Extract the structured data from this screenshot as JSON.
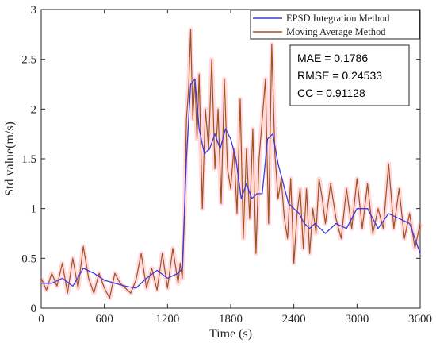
{
  "chart_data": {
    "type": "line",
    "title": "",
    "xlabel": "Time (s)",
    "ylabel": "Std value(m/s)",
    "xlim": [
      0,
      3600
    ],
    "ylim": [
      0,
      3
    ],
    "xticks": [
      0,
      600,
      1200,
      1800,
      2400,
      3000,
      3600
    ],
    "yticks": [
      0,
      0.5,
      1,
      1.5,
      2,
      2.5,
      3
    ],
    "xtick_labels": [
      "0",
      "600",
      "1200",
      "1800",
      "2400",
      "3000",
      "3600"
    ],
    "ytick_labels": [
      "0",
      "0.5",
      "1",
      "1.5",
      "2",
      "2.5",
      "3"
    ],
    "grid": false,
    "legend_position": "top-right",
    "series": [
      {
        "name": "EPSD Integration Method",
        "color": "#3b3bdc",
        "x": [
          0,
          100,
          200,
          300,
          400,
          500,
          600,
          700,
          800,
          900,
          1000,
          1100,
          1200,
          1300,
          1340,
          1380,
          1420,
          1460,
          1500,
          1550,
          1600,
          1650,
          1700,
          1750,
          1800,
          1850,
          1900,
          1950,
          2000,
          2050,
          2100,
          2150,
          2200,
          2250,
          2300,
          2350,
          2400,
          2450,
          2500,
          2550,
          2600,
          2650,
          2700,
          2800,
          2900,
          3000,
          3100,
          3200,
          3300,
          3400,
          3500,
          3600
        ],
        "y": [
          0.25,
          0.25,
          0.3,
          0.22,
          0.4,
          0.35,
          0.28,
          0.25,
          0.22,
          0.2,
          0.3,
          0.38,
          0.3,
          0.35,
          0.4,
          1.5,
          2.25,
          2.3,
          1.8,
          1.55,
          1.6,
          1.75,
          1.6,
          1.8,
          1.7,
          1.5,
          1.1,
          1.25,
          1.1,
          1.15,
          1.15,
          1.7,
          1.75,
          1.45,
          1.25,
          1.05,
          1.0,
          0.95,
          0.85,
          0.8,
          0.85,
          0.8,
          0.75,
          0.85,
          0.8,
          1.0,
          1.0,
          0.8,
          0.95,
          0.9,
          0.85,
          0.55
        ]
      },
      {
        "name": "Moving Average Method",
        "color": "#a0521e",
        "x": [
          0,
          50,
          100,
          150,
          200,
          250,
          300,
          350,
          400,
          450,
          500,
          550,
          600,
          650,
          700,
          750,
          800,
          850,
          900,
          950,
          1000,
          1050,
          1100,
          1150,
          1200,
          1250,
          1300,
          1320,
          1340,
          1360,
          1380,
          1400,
          1420,
          1440,
          1460,
          1480,
          1500,
          1530,
          1560,
          1590,
          1620,
          1650,
          1680,
          1710,
          1740,
          1770,
          1800,
          1830,
          1860,
          1890,
          1920,
          1950,
          1980,
          2010,
          2040,
          2070,
          2100,
          2130,
          2160,
          2190,
          2220,
          2250,
          2280,
          2310,
          2340,
          2370,
          2400,
          2430,
          2460,
          2490,
          2520,
          2550,
          2580,
          2610,
          2640,
          2670,
          2700,
          2750,
          2800,
          2850,
          2900,
          2950,
          3000,
          3050,
          3100,
          3150,
          3200,
          3250,
          3300,
          3350,
          3400,
          3450,
          3500,
          3550,
          3600
        ],
        "y": [
          0.3,
          0.18,
          0.35,
          0.22,
          0.45,
          0.15,
          0.5,
          0.2,
          0.62,
          0.3,
          0.15,
          0.35,
          0.2,
          0.1,
          0.35,
          0.25,
          0.2,
          0.15,
          0.28,
          0.55,
          0.2,
          0.4,
          0.18,
          0.55,
          0.2,
          0.6,
          0.25,
          0.45,
          0.3,
          0.9,
          1.9,
          2.2,
          2.8,
          1.9,
          2.3,
          1.7,
          2.35,
          1.0,
          2.0,
          1.6,
          2.5,
          1.4,
          2.0,
          1.05,
          2.3,
          1.4,
          1.2,
          1.6,
          0.95,
          2.1,
          0.7,
          1.6,
          0.9,
          1.8,
          0.55,
          1.5,
          1.9,
          2.3,
          0.85,
          2.65,
          1.55,
          1.1,
          1.3,
          0.9,
          0.7,
          1.3,
          0.45,
          0.95,
          1.2,
          0.6,
          1.2,
          0.55,
          1.0,
          0.75,
          1.3,
          1.1,
          0.85,
          1.25,
          0.9,
          0.7,
          1.2,
          0.8,
          1.3,
          0.8,
          1.25,
          0.75,
          1.0,
          0.8,
          1.45,
          0.8,
          1.2,
          0.7,
          0.95,
          0.6,
          0.85
        ]
      }
    ],
    "annotations": {
      "mae": "MAE = 0.1786",
      "rmse": "RMSE = 0.24533",
      "cc": "CC = 0.91128"
    }
  }
}
